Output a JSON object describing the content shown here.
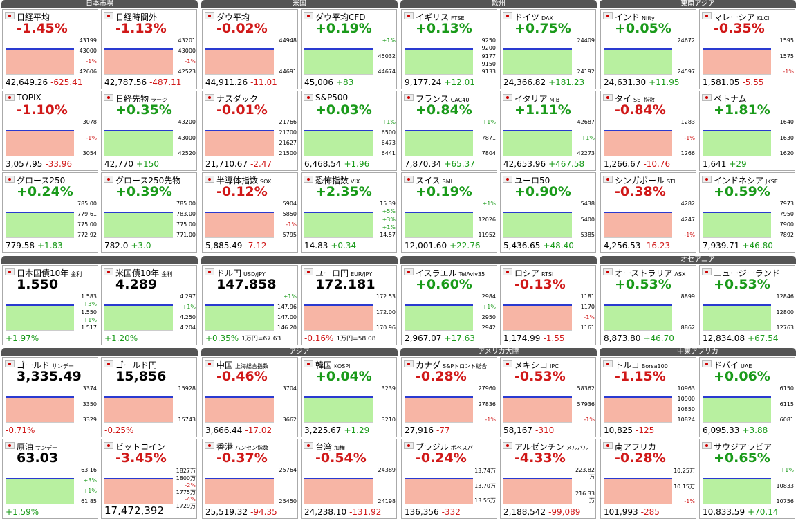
{
  "blocks": [
    {
      "headers": [
        "日本市場",
        "米国",
        "欧州",
        "東南アジア"
      ],
      "rows": [
        [
          {
            "n": "日経平均",
            "t": "-1.45%",
            "f": [
              "42,649.26",
              "-625.41"
            ],
            "a": [
              "43199",
              "43000",
              "-1%",
              "42606"
            ]
          },
          {
            "n": "日経時間外",
            "t": "-1.13%",
            "f": [
              "42,787.56",
              "-487.11"
            ],
            "a": [
              "43201",
              "43000",
              "-1%",
              "42523"
            ]
          },
          {
            "n": "ダウ平均",
            "t": "-0.02%",
            "f": [
              "44,911.26",
              "-11.01"
            ],
            "a": [
              "44948",
              "44691"
            ]
          },
          {
            "n": "ダウ平均CFD",
            "t": "+0.19%",
            "f": [
              "45,006",
              "+83"
            ],
            "a": [
              "+1%",
              "45032",
              "44674"
            ]
          },
          {
            "n": "イギリス",
            "s": "FTSE",
            "t": "+0.13%",
            "f": [
              "9,177.24",
              "+12.01"
            ],
            "a": [
              "9250",
              "9200",
              "9177",
              "9150",
              "9133"
            ]
          },
          {
            "n": "ドイツ",
            "s": "DAX",
            "t": "+0.75%",
            "f": [
              "24,366.82",
              "+181.23"
            ],
            "a": [
              "24409",
              "24192"
            ]
          },
          {
            "n": "インド",
            "s": "Nifty",
            "t": "+0.05%",
            "f": [
              "24,631.30",
              "+11.95"
            ],
            "a": [
              "24672",
              "24597"
            ]
          },
          {
            "n": "マレーシア",
            "s": "KLCI",
            "t": "-0.35%",
            "f": [
              "1,581.05",
              "-5.55"
            ],
            "a": [
              "1595",
              "1575",
              "-1%"
            ]
          }
        ],
        [
          {
            "n": "TOPIX",
            "t": "-1.10%",
            "f": [
              "3,057.95",
              "-33.96"
            ],
            "a": [
              "3078",
              "-1%",
              "3054"
            ]
          },
          {
            "n": "日経先物",
            "s": "ラージ",
            "t": "+0.35%",
            "f": [
              "42,770",
              "+150"
            ],
            "a": [
              "43200",
              "43000",
              "42520"
            ]
          },
          {
            "n": "ナスダック",
            "t": "-0.01%",
            "f": [
              "21,710.67",
              "-2.47"
            ],
            "a": [
              "21766",
              "21700",
              "21627",
              "21500"
            ]
          },
          {
            "n": "S&P500",
            "t": "+0.03%",
            "f": [
              "6,468.54",
              "+1.96"
            ],
            "a": [
              "+1%",
              "6500",
              "6473",
              "6441"
            ]
          },
          {
            "n": "フランス",
            "s": "CAC40",
            "t": "+0.84%",
            "f": [
              "7,870.34",
              "+65.37"
            ],
            "a": [
              "+1%",
              "7871",
              "7804"
            ]
          },
          {
            "n": "イタリア",
            "s": "MIB",
            "t": "+1.11%",
            "f": [
              "42,653.96",
              "+467.58"
            ],
            "a": [
              "42687",
              "+1%",
              "42273"
            ]
          },
          {
            "n": "タイ",
            "s": "SET指数",
            "t": "-0.84%",
            "f": [
              "1,266.67",
              "-10.76"
            ],
            "a": [
              "1283",
              "-1%",
              "1266"
            ]
          },
          {
            "n": "ベトナム",
            "t": "+1.81%",
            "f": [
              "1,641",
              "+29"
            ],
            "a": [
              "1640",
              "1630",
              "1620"
            ]
          }
        ],
        [
          {
            "n": "グロース250",
            "t": "+0.24%",
            "f": [
              "779.58",
              "+1.83"
            ],
            "a": [
              "785.00",
              "779.61",
              "775.00",
              "772.92"
            ]
          },
          {
            "n": "グロース250先物",
            "t": "+0.39%",
            "f": [
              "782.0",
              "+3.0"
            ],
            "a": [
              "785.00",
              "783.00",
              "775.00",
              "771.00"
            ]
          },
          {
            "n": "半導体指数",
            "s": "SOX",
            "t": "-0.12%",
            "f": [
              "5,885.49",
              "-7.12"
            ],
            "a": [
              "5904",
              "5850",
              "-1%",
              "5795"
            ]
          },
          {
            "n": "恐怖指数",
            "s": "VIX",
            "t": "+2.35%",
            "f": [
              "14.83",
              "+0.34"
            ],
            "a": [
              "15.39",
              "+5%",
              "+3%",
              "+1%",
              "14.57"
            ]
          },
          {
            "n": "スイス",
            "s": "SMI",
            "t": "+0.19%",
            "f": [
              "12,001.60",
              "+22.76"
            ],
            "a": [
              "+1%",
              "12026",
              "11952"
            ]
          },
          {
            "n": "ユーロ50",
            "t": "+0.90%",
            "f": [
              "5,436.65",
              "+48.40"
            ],
            "a": [
              "5438",
              "5400",
              "5385"
            ]
          },
          {
            "n": "シンガポール",
            "s": "STI",
            "t": "-0.38%",
            "f": [
              "4,256.53",
              "-16.23"
            ],
            "a": [
              "4282",
              "4247",
              "-1%"
            ]
          },
          {
            "n": "インドネシア",
            "s": "JKSE",
            "t": "+0.59%",
            "f": [
              "7,939.71",
              "+46.80"
            ],
            "a": [
              "7973",
              "7950",
              "7900",
              "7892"
            ]
          }
        ]
      ]
    },
    {
      "headers": [
        null,
        null,
        null,
        "オセアニア"
      ],
      "rows": [
        [
          {
            "n": "日本国債10年",
            "s": "金利",
            "t": "1.550",
            "f": [
              "+1.97%"
            ],
            "a": [
              "1.583",
              "+3%",
              "1.550",
              "+1%",
              "1.517"
            ]
          },
          {
            "n": "米国債10年",
            "s": "金利",
            "t": "4.289",
            "f": [
              "+1.20%"
            ],
            "a": [
              "4.297",
              "+1%",
              "4.250",
              "4.204"
            ]
          },
          {
            "n": "ドル円",
            "s": "USD/JPY",
            "t": "147.858",
            "f": [
              "+0.35%",
              "1万円=67.63"
            ],
            "a": [
              "+1%",
              "147.96",
              "147.00",
              "146.20"
            ]
          },
          {
            "n": "ユーロ円",
            "s": "EUR/JPY",
            "t": "172.181",
            "f": [
              "-0.16%",
              "1万円=58.08"
            ],
            "a": [
              "172.53",
              "172.00",
              "170.96"
            ]
          },
          {
            "n": "イスラエル",
            "s": "TelAviv35",
            "t": "+0.60%",
            "f": [
              "2,967.07",
              "+17.63"
            ],
            "a": [
              "2984",
              "+1%",
              "2950",
              "2942"
            ]
          },
          {
            "n": "ロシア",
            "s": "RTSI",
            "t": "-0.13%",
            "f": [
              "1,174.99",
              "-1.55"
            ],
            "a": [
              "1181",
              "1170",
              "-1%",
              "1161"
            ]
          },
          {
            "n": "オーストラリア",
            "s": "ASX",
            "t": "+0.53%",
            "f": [
              "8,873.80",
              "+46.70"
            ],
            "a": [
              "8899",
              "8862"
            ]
          },
          {
            "n": "ニュージーランド",
            "t": "+0.53%",
            "f": [
              "12,834.08",
              "+67.54"
            ],
            "a": [
              "12846",
              "12800",
              "12763"
            ]
          }
        ]
      ]
    },
    {
      "headers": [
        null,
        "アジア",
        "アメリカ大陸",
        "中東アフリカ"
      ],
      "rows": [
        [
          {
            "n": "ゴールド",
            "s": "サンデー",
            "t": "3,335.49",
            "f": [
              "-0.71%"
            ],
            "a": [
              "3374",
              "3350",
              "3329"
            ]
          },
          {
            "n": "ゴールド円",
            "t": "15,856",
            "f": [
              "-0.25%"
            ],
            "a": [
              "15928",
              "15743"
            ]
          },
          {
            "n": "中国",
            "s": "上海総合指数",
            "t": "-0.46%",
            "f": [
              "3,666.44",
              "-17.02"
            ],
            "a": [
              "3704",
              "3662"
            ]
          },
          {
            "n": "韓国",
            "s": "KOSPI",
            "t": "+0.04%",
            "f": [
              "3,225.67",
              "+1.29"
            ],
            "a": [
              "3239",
              "3210"
            ]
          },
          {
            "n": "カナダ",
            "s": "S&Pトロント総合",
            "t": "-0.28%",
            "f": [
              "27,916",
              "-77"
            ],
            "a": [
              "27960",
              "27836",
              "-1%"
            ]
          },
          {
            "n": "メキシコ",
            "s": "IPC",
            "t": "-0.53%",
            "f": [
              "58,167",
              "-310"
            ],
            "a": [
              "58362",
              "57936",
              "-1%"
            ]
          },
          {
            "n": "トルコ",
            "s": "Borsa100",
            "t": "-1.15%",
            "f": [
              "10,825",
              "-125"
            ],
            "a": [
              "10963",
              "10900",
              "10850",
              "10824"
            ]
          },
          {
            "n": "ドバイ",
            "s": "UAE",
            "t": "+0.06%",
            "f": [
              "6,095.33",
              "+3.88"
            ],
            "a": [
              "6150",
              "6115",
              "6081"
            ]
          }
        ],
        [
          {
            "n": "原油",
            "s": "サンデー",
            "t": "63.03",
            "f": [
              "+1.59%"
            ],
            "a": [
              "63.16",
              "+3%",
              "+1%",
              "61.85"
            ]
          },
          {
            "n": "ビットコイン",
            "t": "-3.45%",
            "f": [
              "17,472,392"
            ],
            "a": [
              "1827万",
              "1800万",
              "-2%",
              "1775万",
              "-4%",
              "1729万"
            ]
          },
          {
            "n": "香港",
            "s": "ハンセン指数",
            "t": "-0.37%",
            "f": [
              "25,519.32",
              "-94.35"
            ],
            "a": [
              "25764",
              "25450"
            ]
          },
          {
            "n": "台湾",
            "s": "加権",
            "t": "-0.54%",
            "f": [
              "24,238.10",
              "-131.92"
            ],
            "a": [
              "24389",
              "24198"
            ]
          },
          {
            "n": "ブラジル",
            "s": "ボベスパ",
            "t": "-0.24%",
            "f": [
              "136,356",
              "-332"
            ],
            "a": [
              "13.74万",
              "13.70万",
              "13.55万"
            ]
          },
          {
            "n": "アルゼンチン",
            "s": "メルバル",
            "t": "-4.33%",
            "f": [
              "2,188,542",
              "-99,089"
            ],
            "a": [
              "223.82万",
              "216.33万"
            ]
          },
          {
            "n": "南アフリカ",
            "t": "-0.28%",
            "f": [
              "101,993",
              "-285"
            ],
            "a": [
              "10.25万",
              "10.15万",
              "-1%"
            ]
          },
          {
            "n": "サウジアラビア",
            "t": "+0.65%",
            "f": [
              "10,833.59",
              "+70.14"
            ],
            "a": [
              "+1%",
              "10833",
              "10756"
            ]
          }
        ]
      ]
    }
  ]
}
